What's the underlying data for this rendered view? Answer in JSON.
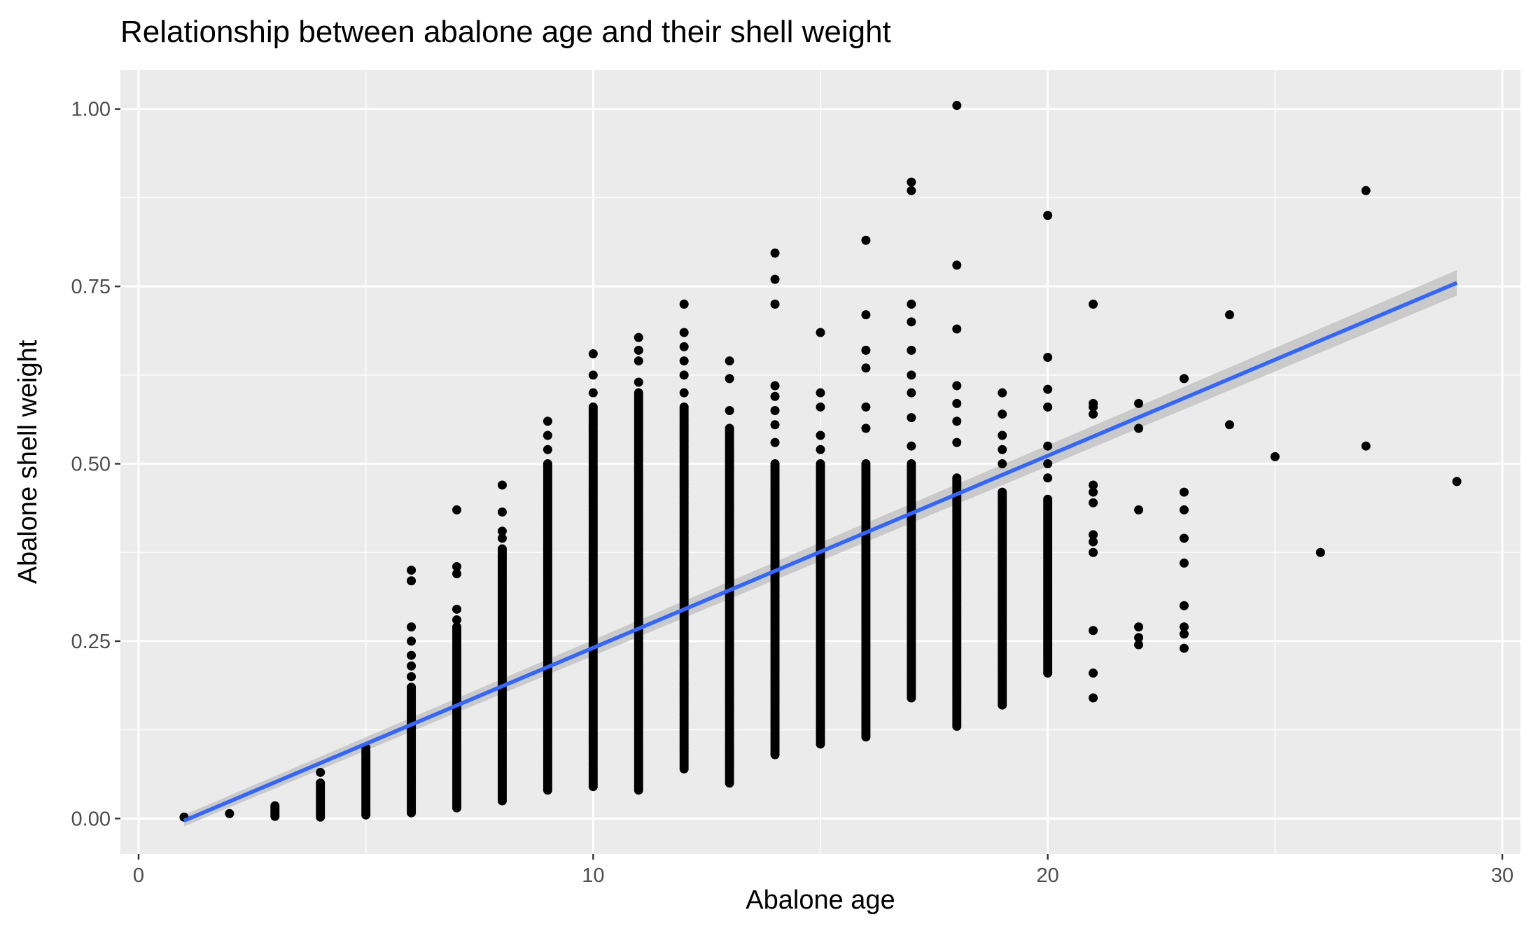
{
  "chart_data": {
    "type": "scatter",
    "title": "Relationship between abalone age and their shell weight",
    "xlabel": "Abalone age",
    "ylabel": "Abalone shell weight",
    "xlim": [
      -0.4,
      30.4
    ],
    "ylim": [
      -0.05,
      1.055
    ],
    "xticks": [
      0,
      10,
      20,
      30
    ],
    "xtick_labels": [
      "0",
      "10",
      "20",
      "30"
    ],
    "yticks": [
      0,
      0.25,
      0.5,
      0.75,
      1.0
    ],
    "ytick_labels": [
      "0.00",
      "0.25",
      "0.50",
      "0.75",
      "1.00"
    ],
    "grid": true,
    "colors": {
      "panel": "#ebebeb",
      "grid": "#ffffff",
      "points": "#000000",
      "trend": "#3366ff",
      "ribbon": "#bfbfbf"
    },
    "point_groups": [
      {
        "x": 1,
        "ymin": 0.002,
        "ymax": 0.002,
        "extra": []
      },
      {
        "x": 2,
        "ymin": 0.007,
        "ymax": 0.007,
        "extra": []
      },
      {
        "x": 3,
        "ymin": 0.003,
        "ymax": 0.018,
        "extra": []
      },
      {
        "x": 4,
        "ymin": 0.002,
        "ymax": 0.05,
        "extra": [
          0.065
        ]
      },
      {
        "x": 5,
        "ymin": 0.005,
        "ymax": 0.095,
        "extra": [
          0.1
        ]
      },
      {
        "x": 6,
        "ymin": 0.008,
        "ymax": 0.185,
        "extra": [
          0.2,
          0.215,
          0.23,
          0.25,
          0.27,
          0.335,
          0.35
        ]
      },
      {
        "x": 7,
        "ymin": 0.015,
        "ymax": 0.27,
        "extra": [
          0.28,
          0.295,
          0.345,
          0.355,
          0.435
        ]
      },
      {
        "x": 8,
        "ymin": 0.025,
        "ymax": 0.38,
        "extra": [
          0.395,
          0.405,
          0.432,
          0.47
        ]
      },
      {
        "x": 9,
        "ymin": 0.04,
        "ymax": 0.5,
        "extra": [
          0.52,
          0.54,
          0.56
        ]
      },
      {
        "x": 10,
        "ymin": 0.045,
        "ymax": 0.58,
        "extra": [
          0.6,
          0.625,
          0.655
        ]
      },
      {
        "x": 11,
        "ymin": 0.04,
        "ymax": 0.6,
        "extra": [
          0.615,
          0.645,
          0.66,
          0.678
        ]
      },
      {
        "x": 12,
        "ymin": 0.07,
        "ymax": 0.58,
        "extra": [
          0.6,
          0.625,
          0.645,
          0.665,
          0.685,
          0.725
        ]
      },
      {
        "x": 13,
        "ymin": 0.05,
        "ymax": 0.55,
        "extra": [
          0.575,
          0.62,
          0.645
        ]
      },
      {
        "x": 14,
        "ymin": 0.09,
        "ymax": 0.5,
        "extra": [
          0.53,
          0.555,
          0.575,
          0.595,
          0.61,
          0.725,
          0.76,
          0.797
        ]
      },
      {
        "x": 15,
        "ymin": 0.105,
        "ymax": 0.5,
        "extra": [
          0.52,
          0.54,
          0.58,
          0.6,
          0.685
        ]
      },
      {
        "x": 16,
        "ymin": 0.115,
        "ymax": 0.5,
        "extra": [
          0.55,
          0.58,
          0.635,
          0.66,
          0.71,
          0.815
        ]
      },
      {
        "x": 17,
        "ymin": 0.17,
        "ymax": 0.5,
        "extra": [
          0.525,
          0.565,
          0.6,
          0.625,
          0.66,
          0.7,
          0.725,
          0.885,
          0.897
        ]
      },
      {
        "x": 18,
        "ymin": 0.13,
        "ymax": 0.48,
        "extra": [
          0.53,
          0.56,
          0.585,
          0.61,
          0.69,
          0.78,
          1.005
        ]
      },
      {
        "x": 19,
        "ymin": 0.16,
        "ymax": 0.46,
        "extra": [
          0.5,
          0.52,
          0.54,
          0.57,
          0.6
        ]
      },
      {
        "x": 20,
        "ymin": 0.205,
        "ymax": 0.45,
        "extra": [
          0.48,
          0.5,
          0.525,
          0.58,
          0.605,
          0.65,
          0.85
        ]
      },
      {
        "x": 21,
        "ymin": 0.17,
        "ymax": 0.17,
        "extra": [
          0.205,
          0.265,
          0.375,
          0.39,
          0.4,
          0.445,
          0.46,
          0.47,
          0.57,
          0.58,
          0.585,
          0.725
        ]
      },
      {
        "x": 22,
        "ymin": 0.245,
        "ymax": 0.245,
        "extra": [
          0.255,
          0.27,
          0.435,
          0.55,
          0.585
        ]
      },
      {
        "x": 23,
        "ymin": 0.24,
        "ymax": 0.24,
        "extra": [
          0.26,
          0.27,
          0.3,
          0.36,
          0.395,
          0.435,
          0.46,
          0.62
        ]
      },
      {
        "x": 24,
        "ymin": 0.555,
        "ymax": 0.555,
        "extra": [
          0.71
        ]
      },
      {
        "x": 25,
        "ymin": 0.51,
        "ymax": 0.51,
        "extra": []
      },
      {
        "x": 26,
        "ymin": 0.375,
        "ymax": 0.375,
        "extra": []
      },
      {
        "x": 27,
        "ymin": 0.525,
        "ymax": 0.525,
        "extra": [
          0.885
        ]
      },
      {
        "x": 29,
        "ymin": 0.475,
        "ymax": 0.475,
        "extra": []
      }
    ],
    "trend_line": {
      "method": "linear",
      "x": [
        1,
        29
      ],
      "y": [
        -0.003,
        0.755
      ],
      "ribbon_halfwidth_start": 0.008,
      "ribbon_halfwidth_end": 0.018
    }
  }
}
